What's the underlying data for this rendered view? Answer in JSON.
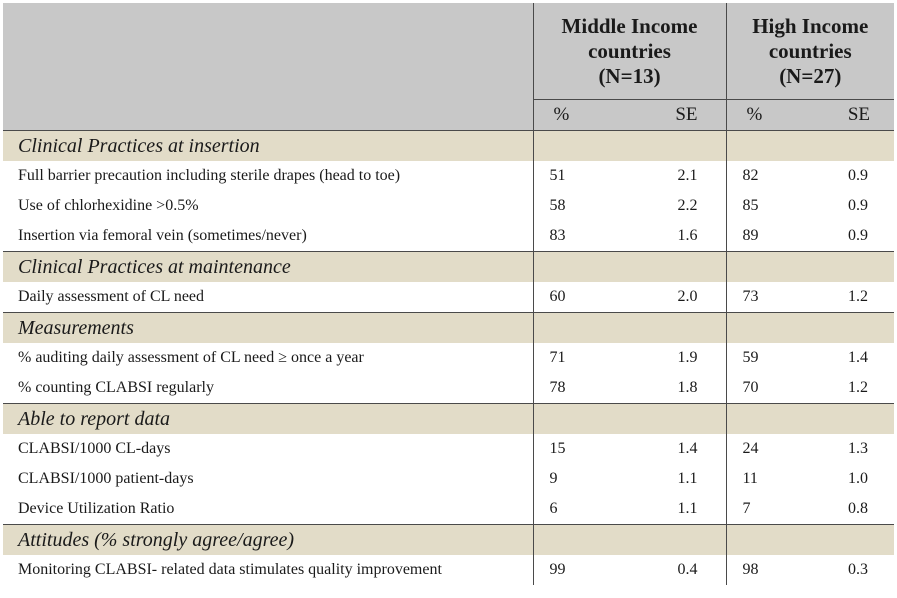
{
  "header": {
    "group1": [
      "Middle Income",
      "countries",
      "(N=13)"
    ],
    "group2": [
      "High Income",
      "countries",
      "(N=27)"
    ],
    "pct_label": "%",
    "se_label": "SE"
  },
  "sections": [
    {
      "title": "Clinical Practices at insertion",
      "rows": [
        {
          "label": "Full barrier precaution including sterile drapes (head to toe)",
          "mid_pct": "51",
          "mid_se": "2.1",
          "high_pct": "82",
          "high_se": "0.9"
        },
        {
          "label": "Use of chlorhexidine >0.5%",
          "mid_pct": "58",
          "mid_se": "2.2",
          "high_pct": "85",
          "high_se": "0.9"
        },
        {
          "label": "Insertion via femoral vein (sometimes/never)",
          "mid_pct": "83",
          "mid_se": "1.6",
          "high_pct": "89",
          "high_se": "0.9"
        }
      ]
    },
    {
      "title": "Clinical Practices at maintenance",
      "rows": [
        {
          "label": "Daily assessment of CL need",
          "mid_pct": "60",
          "mid_se": "2.0",
          "high_pct": "73",
          "high_se": "1.2"
        }
      ]
    },
    {
      "title": "Measurements",
      "rows": [
        {
          "label": "% auditing daily assessment of CL need ≥ once a year",
          "mid_pct": "71",
          "mid_se": "1.9",
          "high_pct": "59",
          "high_se": "1.4"
        },
        {
          "label": "% counting CLABSI regularly",
          "mid_pct": "78",
          "mid_se": "1.8",
          "high_pct": "70",
          "high_se": "1.2"
        }
      ]
    },
    {
      "title": "Able to report data",
      "rows": [
        {
          "label": "CLABSI/1000 CL-days",
          "mid_pct": "15",
          "mid_se": "1.4",
          "high_pct": "24",
          "high_se": "1.3"
        },
        {
          "label": "CLABSI/1000 patient-days",
          "mid_pct": "9",
          "mid_se": "1.1",
          "high_pct": "11",
          "high_se": "1.0"
        },
        {
          "label": "Device Utilization Ratio",
          "mid_pct": "6",
          "mid_se": "1.1",
          "high_pct": "7",
          "high_se": "0.8"
        }
      ]
    },
    {
      "title": "Attitudes (% strongly agree/agree)",
      "rows": [
        {
          "label": "Monitoring CLABSI- related data stimulates quality improvement",
          "mid_pct": "99",
          "mid_se": "0.4",
          "high_pct": "98",
          "high_se": "0.3"
        }
      ]
    }
  ]
}
